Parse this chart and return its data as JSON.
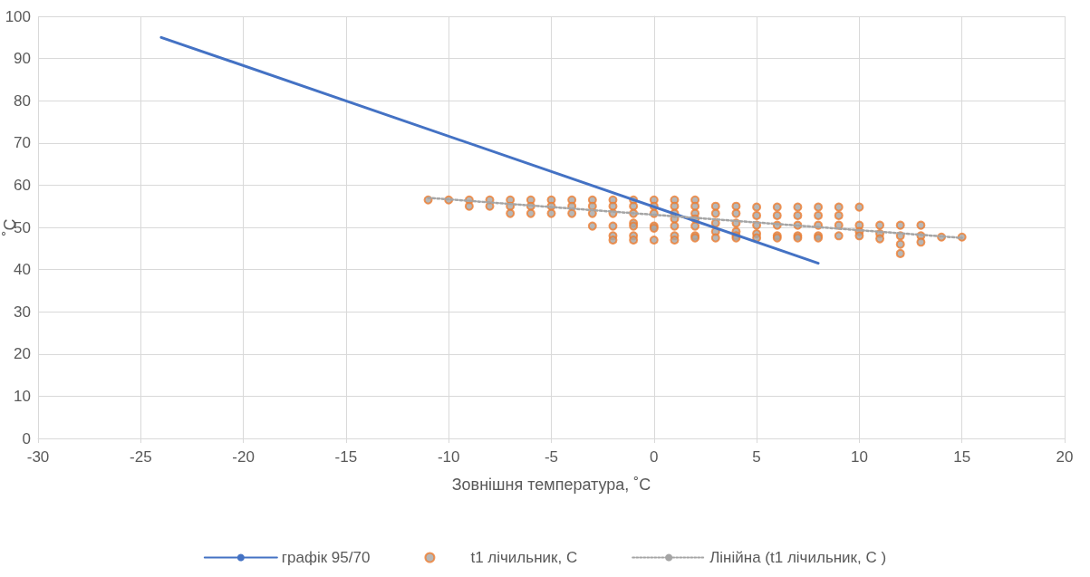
{
  "chart_data": {
    "type": "scatter",
    "xlabel": "Зовнішня температура, ˚C",
    "ylabel": "˚C",
    "xlim": [
      -30,
      20
    ],
    "xticks": [
      -30,
      -25,
      -20,
      -15,
      -10,
      -5,
      0,
      5,
      10,
      15,
      20
    ],
    "ylim": [
      0,
      100
    ],
    "yticks": [
      0,
      10,
      20,
      30,
      40,
      50,
      60,
      70,
      80,
      90,
      100
    ],
    "grid": true,
    "legend": "bottom",
    "series": [
      {
        "name": "графік 95/70",
        "type": "line",
        "color": "#4472c4",
        "marker": "none",
        "line_style": "solid",
        "x": [
          -24,
          8
        ],
        "values": [
          95,
          41.5
        ]
      },
      {
        "name": "t1 лічильник, С",
        "color": "#ed7d31",
        "marker": "circle",
        "x": [
          -11,
          -10,
          -9,
          -9,
          -8,
          -8,
          -7,
          -7,
          -7,
          -6,
          -6,
          -6,
          -5,
          -5,
          -5,
          -4,
          -4,
          -4,
          -3,
          -3,
          -3,
          -3,
          -2,
          -2,
          -2,
          -2,
          -2,
          -2,
          -1,
          -1,
          -1,
          -1,
          -1,
          -1,
          -1,
          0,
          0,
          0,
          0,
          0,
          0,
          1,
          1,
          1,
          1,
          1,
          1,
          1,
          2,
          2,
          2,
          2,
          2,
          2,
          2,
          3,
          3,
          3,
          3,
          3,
          4,
          4,
          4,
          4,
          4,
          4,
          5,
          5,
          5,
          5,
          5,
          6,
          6,
          6,
          6,
          6,
          7,
          7,
          7,
          7,
          7,
          8,
          8,
          8,
          8,
          8,
          9,
          9,
          9,
          9,
          10,
          10,
          10,
          10,
          11,
          11,
          11,
          12,
          12,
          12,
          12,
          13,
          13,
          13,
          14,
          15
        ],
        "values": [
          56.5,
          56.5,
          56.5,
          55,
          56.5,
          55,
          56.5,
          55,
          53.3,
          56.5,
          55,
          53.3,
          56.5,
          55,
          53.3,
          56.5,
          55,
          53.3,
          56.5,
          55,
          53.3,
          50.3,
          56.5,
          55,
          53.3,
          50.3,
          48,
          47,
          56.5,
          55,
          53.3,
          51,
          50.3,
          48,
          47,
          56.5,
          55,
          53.3,
          50.3,
          49.8,
          47,
          56.5,
          55,
          53.3,
          52,
          50.3,
          48,
          47,
          56.5,
          55,
          53.3,
          52,
          50.3,
          48,
          47.5,
          55,
          53.3,
          51,
          49,
          47.5,
          55,
          53.3,
          51,
          49,
          48,
          47.5,
          54.8,
          52.8,
          50.5,
          48.5,
          47.5,
          54.8,
          52.8,
          50.5,
          48,
          47.5,
          54.8,
          52.8,
          50.5,
          48,
          47.5,
          54.8,
          52.8,
          50.5,
          48,
          47.5,
          54.8,
          52.8,
          50.5,
          48,
          54.8,
          50.5,
          49,
          48,
          50.5,
          48.5,
          47.3,
          50.5,
          48,
          46,
          43.8,
          50.5,
          48,
          46.5,
          47.7,
          47.7
        ]
      },
      {
        "name": "Лінійна (t1 лічильник, С )",
        "type": "line",
        "color": "#a5a5a5",
        "marker": "none",
        "line_style": "dotted",
        "x": [
          -11,
          15
        ],
        "values": [
          57,
          47.5
        ]
      }
    ]
  }
}
